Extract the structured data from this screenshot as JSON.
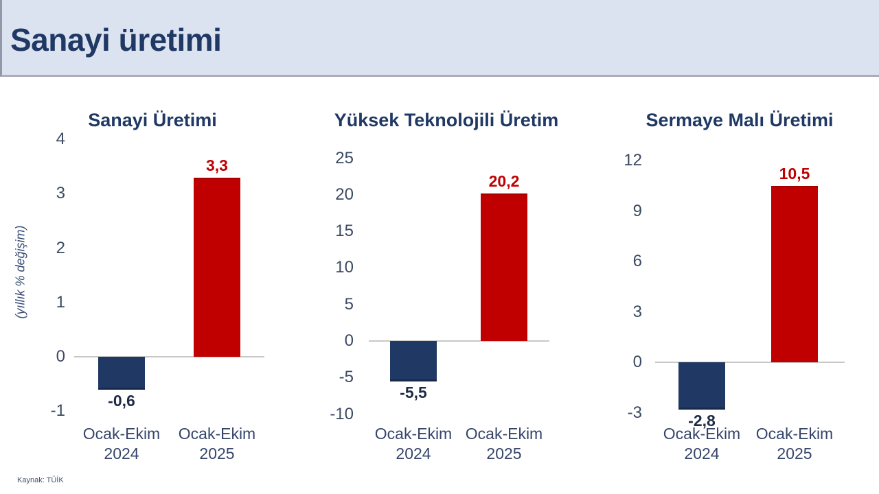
{
  "header": {
    "title": "Sanayi üretimi"
  },
  "footer": {
    "source": "Kaynak: TÜİK"
  },
  "colors": {
    "bar_positive": "#C00000",
    "bar_negative": "#1F3864",
    "label_positive": "#C00000",
    "label_negative": "#1F2B45",
    "title_navy": "#1F3864",
    "axis_text": "#3B4A63",
    "header_bg": "#DCE3F0",
    "zero_line": "#C8C8C8"
  },
  "chart_data": [
    {
      "type": "bar",
      "title": "Sanayi Üretimi",
      "ylabel": "(yıllık % değişim)",
      "categories": [
        "Ocak-Ekim 2024",
        "Ocak-Ekim 2025"
      ],
      "values": [
        -0.6,
        3.3
      ],
      "value_labels": [
        "-0,6",
        "3,3"
      ],
      "yticks": [
        4,
        3,
        2,
        1,
        0,
        -1
      ],
      "ylim": [
        -1,
        4
      ],
      "grid": false,
      "legend": "none"
    },
    {
      "type": "bar",
      "title": "Yüksek Teknolojili Üretim",
      "ylabel": "",
      "categories": [
        "Ocak-Ekim 2024",
        "Ocak-Ekim 2025"
      ],
      "values": [
        -5.5,
        20.2
      ],
      "value_labels": [
        "-5,5",
        "20,2"
      ],
      "yticks": [
        25,
        20,
        15,
        10,
        5,
        0,
        -5,
        -10
      ],
      "ylim": [
        -10,
        25
      ],
      "grid": false,
      "legend": "none"
    },
    {
      "type": "bar",
      "title": "Sermaye Malı Üretimi",
      "ylabel": "",
      "categories": [
        "Ocak-Ekim 2024",
        "Ocak-Ekim 2025"
      ],
      "values": [
        -2.8,
        10.5
      ],
      "value_labels": [
        "-2,8",
        "10,5"
      ],
      "yticks": [
        12,
        9,
        6,
        3,
        0,
        -3
      ],
      "ylim": [
        -3,
        12
      ],
      "grid": false,
      "legend": "none"
    }
  ]
}
